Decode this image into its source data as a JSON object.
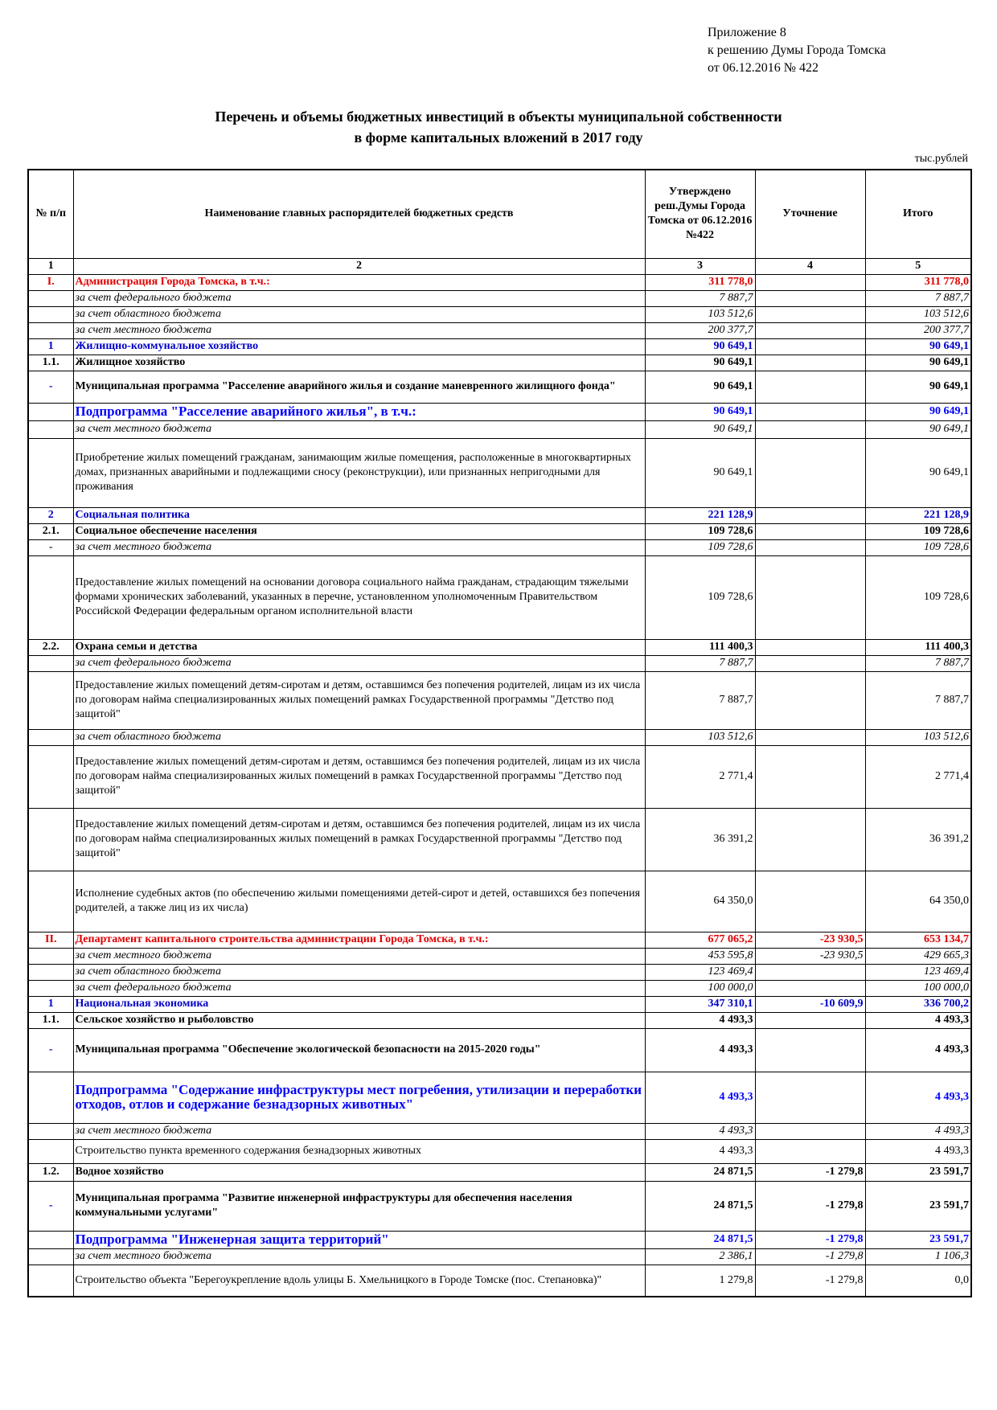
{
  "header": {
    "appendix_line1": "Приложение 8",
    "appendix_line2": "к решению Думы Города Томска",
    "appendix_line3": "от 06.12.2016 № 422",
    "title_line1": "Перечень и объемы бюджетных инвестиций в объекты муниципальной собственности",
    "title_line2": "в форме капитальных вложений в 2017 году",
    "units": "тыс.рублей"
  },
  "table": {
    "columns": {
      "num": "№ п/п",
      "name": "Наименование главных распорядителей бюджетных средств",
      "approved": "Утверждено реш.Думы Города Томска от 06.12.2016 №422",
      "refinement": "Уточнение",
      "total": "Итого"
    },
    "column_numbers": [
      "1",
      "2",
      "3",
      "4",
      "5"
    ],
    "rows": [
      {
        "num": "I.",
        "name": "Администрация Города Томска, в т.ч.:",
        "approved": "311 778,0",
        "refinement": "",
        "total": "311 778,0",
        "style": "red",
        "h": 20
      },
      {
        "num": "",
        "name": "за счет федерального бюджета",
        "approved": "7 887,7",
        "refinement": "",
        "total": "7 887,7",
        "style": "italic",
        "h": 20
      },
      {
        "num": "",
        "name": "за счет областного бюджета",
        "approved": "103 512,6",
        "refinement": "",
        "total": "103 512,6",
        "style": "italic",
        "h": 20
      },
      {
        "num": "",
        "name": "за счет  местного бюджета",
        "approved": "200 377,7",
        "refinement": "",
        "total": "200 377,7",
        "style": "italic",
        "h": 20
      },
      {
        "num": "1",
        "name": "Жилищно-коммунальное хозяйство",
        "approved": "90 649,1",
        "refinement": "",
        "total": "90 649,1",
        "style": "blue",
        "h": 20
      },
      {
        "num": "1.1.",
        "name": "Жилищное хозяйство",
        "approved": "90 649,1",
        "refinement": "",
        "total": "90 649,1",
        "style": "bold",
        "h": 20
      },
      {
        "num": "-",
        "name": "Муниципальная программа \"Расселение аварийного жилья и создание маневренного жилищного фонда\"",
        "approved": "90 649,1",
        "refinement": "",
        "total": "90 649,1",
        "style": "prog",
        "h": 40
      },
      {
        "num": "",
        "name": "Подпрограмма \"Расселение аварийного жилья\", в т.ч.:",
        "approved": "90 649,1",
        "refinement": "",
        "total": "90 649,1",
        "style": "sub",
        "h": 22
      },
      {
        "num": "",
        "name": "за счет  местного бюджета",
        "approved": "90 649,1",
        "refinement": "",
        "total": "90 649,1",
        "style": "italic",
        "h": 22
      },
      {
        "num": "",
        "name": "Приобретение жилых помещений гражданам, занимающим жилые помещения, расположенные в многоквартирных домах, признанных аварийными и подлежащими сносу (реконструкции), или признанных непригодными для проживания",
        "approved": "90 649,1",
        "refinement": "",
        "total": "90 649,1",
        "style": "plain",
        "h": 86
      },
      {
        "num": "2",
        "name": "Социальная политика",
        "approved": "221 128,9",
        "refinement": "",
        "total": "221 128,9",
        "style": "blue",
        "h": 20
      },
      {
        "num": "2.1.",
        "name": "Социальное обеспечение населения",
        "approved": "109 728,6",
        "refinement": "",
        "total": "109 728,6",
        "style": "bold",
        "h": 20
      },
      {
        "num": "-",
        "name": "за счет  местного бюджета",
        "approved": "109 728,6",
        "refinement": "",
        "total": "109 728,6",
        "style": "italic-dash",
        "h": 20
      },
      {
        "num": "",
        "name": "Предоставление жилых помещений на основании договора социального найма гражданам, страдающим тяжелыми формами хронических заболеваний, указанных в перечне, установленном уполномоченным Правительством Российской Федерации федеральным органом исполнительной власти",
        "approved": "109 728,6",
        "refinement": "",
        "total": "109 728,6",
        "style": "plain",
        "h": 104
      },
      {
        "num": "2.2.",
        "name": "Охрана семьи и детства",
        "approved": "111 400,3",
        "refinement": "",
        "total": "111 400,3",
        "style": "bold",
        "h": 20
      },
      {
        "num": "",
        "name": "за счет федерального бюджета",
        "approved": "7 887,7",
        "refinement": "",
        "total": "7 887,7",
        "style": "italic",
        "h": 20
      },
      {
        "num": "",
        "name": "   Предоставление жилых помещений детям-сиротам и детям, оставшимся без попечения родителей, лицам из их числа по договорам найма специализированных жилых помещений рамках Государственной программы \"Детство под защитой\"",
        "approved": "7 887,7",
        "refinement": "",
        "total": "7 887,7",
        "style": "plain",
        "h": 72
      },
      {
        "num": "",
        "name": "за счет областного бюджета",
        "approved": "103 512,6",
        "refinement": "",
        "total": "103 512,6",
        "style": "italic",
        "h": 20
      },
      {
        "num": "",
        "name": "Предоставление жилых помещений детям-сиротам и детям, оставшимся без попечения родителей, лицам из их числа по договорам найма специализированных жилых помещений в рамках Государственной программы \"Детство под защитой\"",
        "approved": "2 771,4",
        "refinement": "",
        "total": "2 771,4",
        "style": "plain",
        "h": 78
      },
      {
        "num": "",
        "name": "Предоставление жилых помещений детям-сиротам и детям, оставшимся без попечения родителей, лицам из их числа по договорам найма специализированных жилых помещений в рамках Государственной программы \"Детство под защитой\"",
        "approved": "36 391,2",
        "refinement": "",
        "total": "36 391,2",
        "style": "plain",
        "h": 78
      },
      {
        "num": "",
        "name": "Исполнение судебных актов (по обеспечению жилыми помещениями детей-сирот и детей, оставшихся без попечения родителей, а также лиц из их числа)",
        "approved": "64 350,0",
        "refinement": "",
        "total": "64 350,0",
        "style": "plain",
        "h": 76
      },
      {
        "num": "II.",
        "name": "Департамент капитального строительства администрации Города Томска, в т.ч.:",
        "approved": "677 065,2",
        "refinement": "-23 930,5",
        "total": "653 134,7",
        "style": "red",
        "h": 20
      },
      {
        "num": "",
        "name": "за счет  местного бюджета",
        "approved": "453 595,8",
        "refinement": "-23 930,5",
        "total": "429 665,3",
        "style": "italic",
        "h": 20
      },
      {
        "num": "",
        "name": "за счет областного бюджета",
        "approved": "123 469,4",
        "refinement": "",
        "total": "123 469,4",
        "style": "italic",
        "h": 20
      },
      {
        "num": "",
        "name": "за счет федерального бюджета",
        "approved": "100 000,0",
        "refinement": "",
        "total": "100 000,0",
        "style": "italic",
        "h": 20
      },
      {
        "num": "1",
        "name": "Национальная экономика",
        "approved": "347 310,1",
        "refinement": "-10 609,9",
        "total": "336 700,2",
        "style": "blue",
        "h": 20
      },
      {
        "num": "1.1.",
        "name": "Сельское хозяйство и рыболовство",
        "approved": "4 493,3",
        "refinement": "",
        "total": "4 493,3",
        "style": "bold",
        "h": 20
      },
      {
        "num": "-",
        "name": "Муниципальная программа \"Обеспечение экологической безопасности на 2015-2020 годы\"",
        "approved": "4 493,3",
        "refinement": "",
        "total": "4 493,3",
        "style": "prog",
        "h": 54
      },
      {
        "num": "",
        "name": "Подпрограмма  \"Содержание инфраструктуры мест погребения, утилизации и переработки отходов, отлов и содержание безнадзорных животных\"",
        "approved": "4 493,3",
        "refinement": "",
        "total": "4 493,3",
        "style": "sub",
        "h": 64
      },
      {
        "num": "",
        "name": "за счет  местного бюджета",
        "approved": "4 493,3",
        "refinement": "",
        "total": "4 493,3",
        "style": "italic",
        "h": 20
      },
      {
        "num": "",
        "name": "Строительство пункта временного содержания безнадзорных животных",
        "approved": "4 493,3",
        "refinement": "",
        "total": "4 493,3",
        "style": "plain",
        "h": 30
      },
      {
        "num": "1.2.",
        "name": "Водное хозяйство",
        "approved": "24 871,5",
        "refinement": "-1 279,8",
        "total": "23 591,7",
        "style": "bold",
        "h": 22
      },
      {
        "num": "-",
        "name": "Муниципальная программа \"Развитие инженерной инфраструктуры для обеспечения населения коммунальными услугами\"",
        "approved": "24 871,5",
        "refinement": "-1 279,8",
        "total": "23 591,7",
        "style": "prog",
        "h": 62
      },
      {
        "num": "",
        "name": "Подпрограмма \"Инженерная защита территорий\"",
        "approved": "24 871,5",
        "refinement": "-1 279,8",
        "total": "23 591,7",
        "style": "sub",
        "h": 22
      },
      {
        "num": "",
        "name": "за счет  местного бюджета",
        "approved": "2 386,1",
        "refinement": "-1 279,8",
        "total": "1 106,3",
        "style": "italic",
        "h": 20
      },
      {
        "num": "",
        "name": "Строительство объекта \"Берегоукрепление вдоль улицы Б. Хмельницкого в Городе Томске (пос. Степановка)\"",
        "approved": "1 279,8",
        "refinement": "-1 279,8",
        "total": "0,0",
        "style": "plain",
        "h": 40
      }
    ]
  }
}
